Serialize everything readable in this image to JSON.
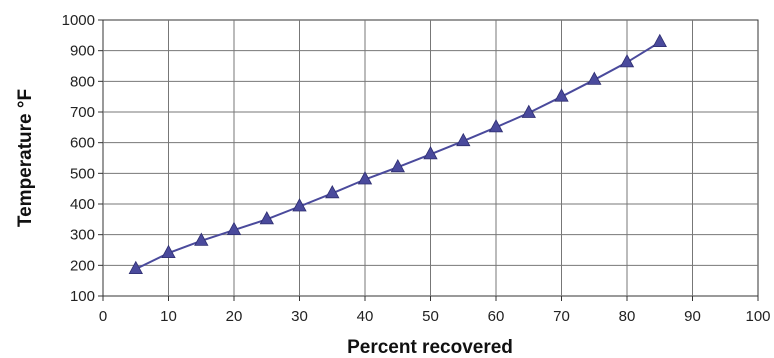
{
  "chart_data": {
    "type": "line",
    "title": "",
    "xlabel": "Percent recovered",
    "ylabel": "Temperature °F",
    "xlim": [
      0,
      100
    ],
    "ylim": [
      100,
      1000
    ],
    "x_ticks": [
      0,
      10,
      20,
      30,
      40,
      50,
      60,
      70,
      80,
      90,
      100
    ],
    "y_ticks": [
      100,
      200,
      300,
      400,
      500,
      600,
      700,
      800,
      900,
      1000
    ],
    "grid": true,
    "legend": "none",
    "marker": "triangle",
    "series_color": "#4a4a9c",
    "series": [
      {
        "x": [
          5,
          10,
          15,
          20,
          25,
          30,
          35,
          40,
          45,
          50,
          55,
          60,
          65,
          70,
          75,
          80,
          85
        ],
        "y": [
          188,
          240,
          280,
          315,
          350,
          392,
          435,
          480,
          520,
          562,
          605,
          650,
          697,
          750,
          805,
          862,
          928
        ]
      }
    ]
  }
}
